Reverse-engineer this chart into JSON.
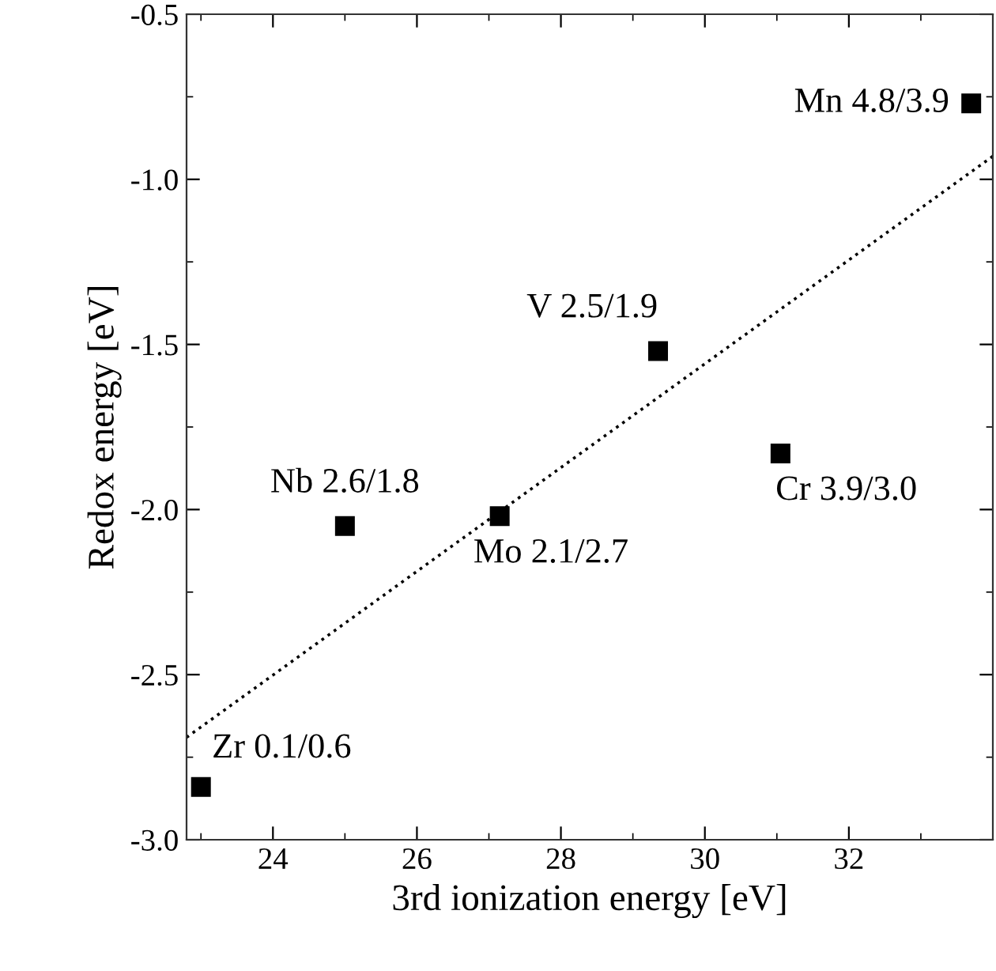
{
  "chart_data": {
    "type": "scatter",
    "xlabel": "3rd ionization energy [eV]",
    "ylabel": "Redox energy [eV]",
    "xlim": [
      22.8,
      34.0
    ],
    "ylim": [
      -3.0,
      -0.5
    ],
    "xticks": [
      24,
      26,
      28,
      30,
      32
    ],
    "yticks": [
      {
        "value": -3.0,
        "label": "-3.0"
      },
      {
        "value": -2.5,
        "label": "-2.5"
      },
      {
        "value": -2.0,
        "label": "-2.0"
      },
      {
        "value": -1.5,
        "label": "-1.5"
      },
      {
        "value": -1.0,
        "label": "-1.0"
      },
      {
        "value": -0.5,
        "label": "-0.5"
      }
    ],
    "grid": false,
    "legend": false,
    "series": [
      {
        "color": "#000000",
        "marker": "square",
        "x": [
          23.0,
          25.0,
          27.15,
          29.35,
          31.05,
          33.7
        ],
        "values": [
          -2.84,
          -2.05,
          -2.02,
          -1.52,
          -1.83,
          -0.77
        ],
        "value_labels": [
          "Zr 0.1/0.6",
          "Nb 2.6/1.8",
          "Mo 2.1/2.7",
          "V 2.5/1.9",
          "Cr 3.9/3.0",
          "Mn 4.8/3.9"
        ]
      },
      {
        "type": "line",
        "color": "#000000",
        "line_style": "dotted",
        "marker": "none",
        "x": [
          22.8,
          34.0
        ],
        "values": [
          -2.69,
          -0.93
        ]
      }
    ]
  }
}
